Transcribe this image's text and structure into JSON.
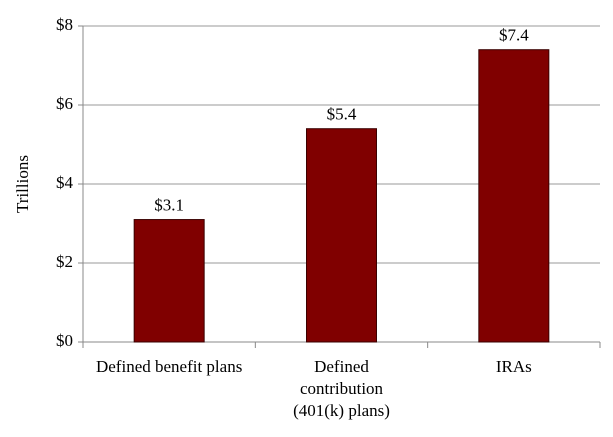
{
  "chart_data": {
    "type": "bar",
    "y_label": "Trillions",
    "categories": [
      "Defined benefit plans",
      "Defined contribution (401(k) plans)",
      "IRAs"
    ],
    "values": [
      3.1,
      5.4,
      7.4
    ],
    "value_labels": [
      "$3.1",
      "$5.4",
      "$7.4"
    ],
    "color": "#800000",
    "ylim": [
      0,
      8
    ],
    "yticks": [
      {
        "value": 0,
        "label": "$0"
      },
      {
        "value": 2,
        "label": "$2"
      },
      {
        "value": 4,
        "label": "$4"
      },
      {
        "value": 6,
        "label": "$6"
      },
      {
        "value": 8,
        "label": "$8"
      }
    ],
    "grid": true
  }
}
